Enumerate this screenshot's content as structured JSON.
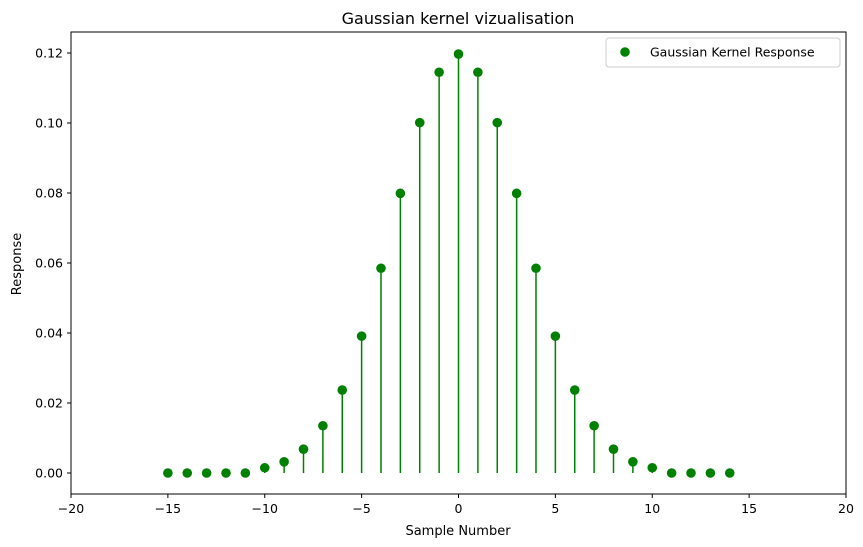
{
  "chart_data": {
    "type": "stem",
    "title": "Gaussian kernel vizualisation",
    "xlabel": "Sample Number",
    "ylabel": "Response",
    "xlim": [
      -20,
      20
    ],
    "ylim": [
      -0.006,
      0.126
    ],
    "xticks": [
      -20,
      -15,
      -10,
      -5,
      0,
      5,
      10,
      15,
      20
    ],
    "xtick_labels": [
      "−20",
      "−15",
      "−10",
      "−5",
      "0",
      "5",
      "10",
      "15",
      "20"
    ],
    "yticks": [
      0.0,
      0.02,
      0.04,
      0.06,
      0.08,
      0.1,
      0.12
    ],
    "ytick_labels": [
      "0.00",
      "0.02",
      "0.04",
      "0.06",
      "0.08",
      "0.10",
      "0.12"
    ],
    "grid": false,
    "legend_position": "top-right",
    "series": [
      {
        "name": "Gaussian Kernel Response",
        "color": "#008000",
        "marker": "circle",
        "x": [
          -15,
          -14,
          -13,
          -12,
          -11,
          -10,
          -9,
          -8,
          -7,
          -6,
          -5,
          -4,
          -3,
          -2,
          -1,
          0,
          1,
          2,
          3,
          4,
          5,
          6,
          7,
          8,
          9,
          10,
          11,
          12,
          13,
          14
        ],
        "y": [
          0.0,
          0.0,
          0.0,
          0.0,
          0.0,
          0.0015,
          0.0032,
          0.0068,
          0.0135,
          0.0237,
          0.0391,
          0.0585,
          0.0799,
          0.1001,
          0.1145,
          0.1197,
          0.1145,
          0.1001,
          0.0799,
          0.0585,
          0.0391,
          0.0237,
          0.0135,
          0.0068,
          0.0032,
          0.0015,
          0.0,
          0.0,
          0.0,
          0.0
        ]
      }
    ]
  }
}
